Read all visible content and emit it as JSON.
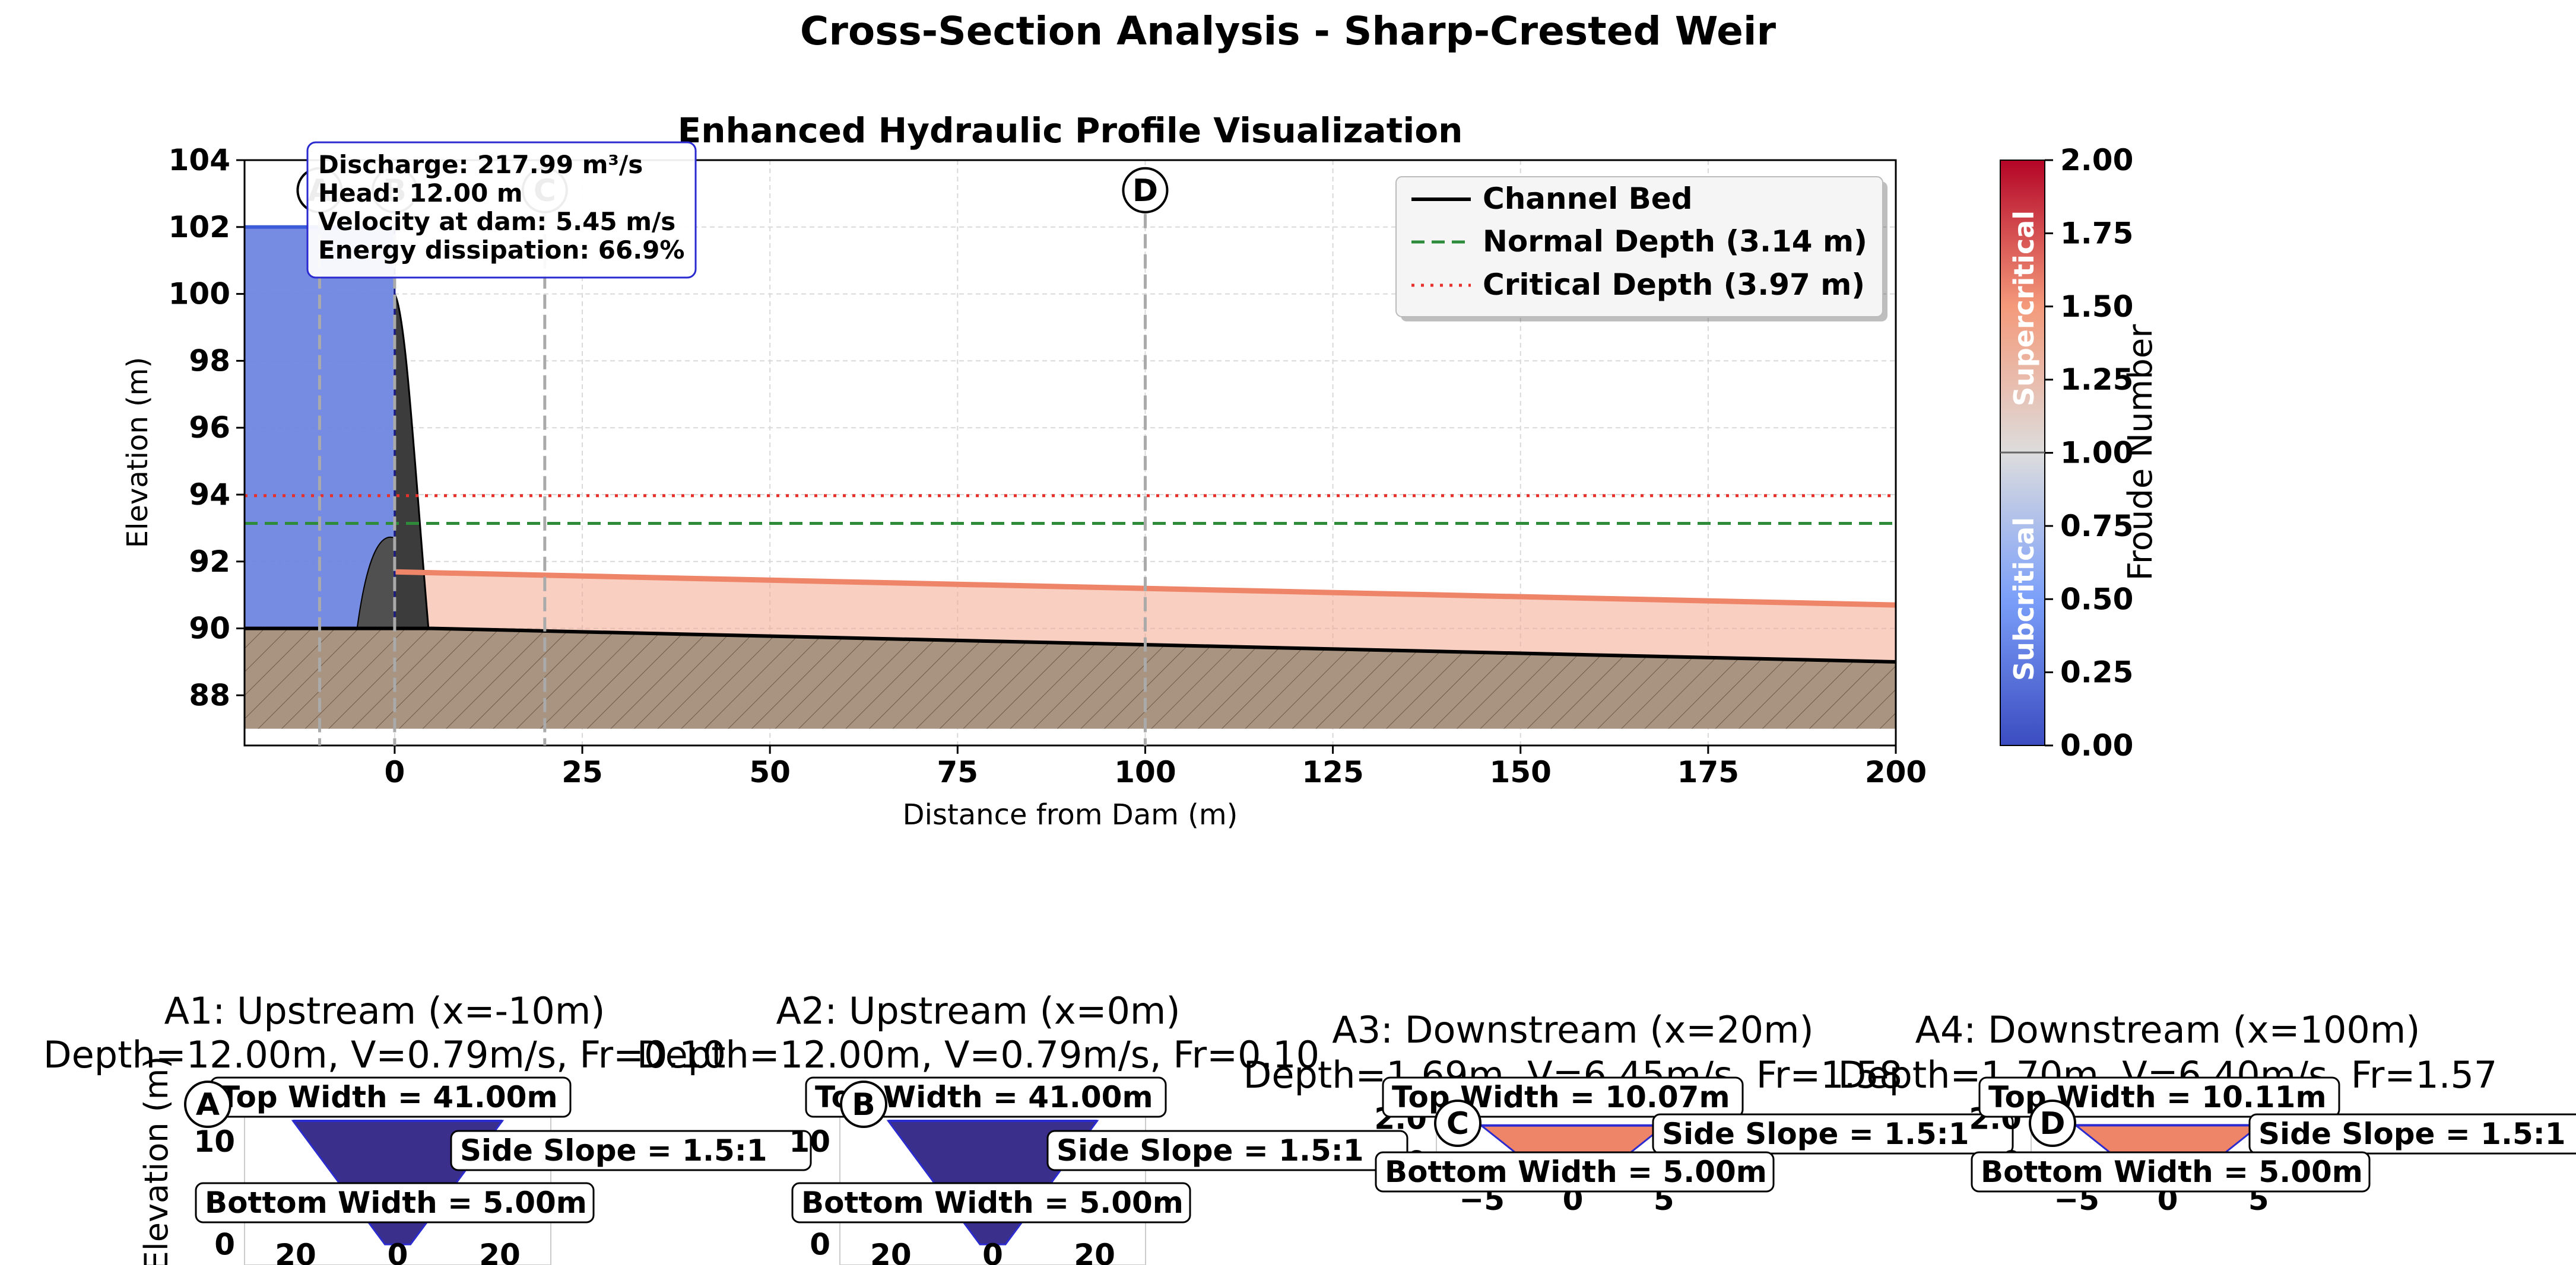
{
  "figure_title": "Cross-Section Analysis - Sharp-Crested Weir",
  "chart_data": [
    {
      "type": "area",
      "title": "Enhanced Hydraulic Profile Visualization",
      "xlabel": "Distance from Dam (m)",
      "ylabel": "Elevation (m)",
      "xlim": [
        -20,
        200
      ],
      "ylim": [
        86.5,
        104
      ],
      "xticks": [
        0,
        25,
        50,
        75,
        100,
        125,
        150,
        175,
        200
      ],
      "yticks": [
        88,
        90,
        92,
        94,
        96,
        98,
        100,
        102,
        104
      ],
      "grid": true,
      "legend_position": "top-right",
      "series": [
        {
          "name": "Channel Bed",
          "x": [
            -20,
            -5,
            0,
            5,
            200
          ],
          "y": [
            90.0,
            90.0,
            90.0,
            90.0,
            89.0
          ]
        },
        {
          "name": "Normal Depth (3.14 m)",
          "y_constant": 93.14
        },
        {
          "name": "Critical Depth (3.97 m)",
          "y_constant": 93.97
        }
      ],
      "upstream_water": {
        "x": [
          -20,
          0
        ],
        "y": [
          102.0,
          102.0
        ]
      },
      "downstream_surface": {
        "x": [
          0,
          200
        ],
        "y": [
          91.69,
          90.7
        ]
      },
      "dam_crest_elevation": 100.0,
      "sections": [
        {
          "label": "A",
          "x": -10
        },
        {
          "label": "B",
          "x": 0
        },
        {
          "label": "C",
          "x": 20
        },
        {
          "label": "D",
          "x": 100
        }
      ],
      "info_box": [
        "Discharge: 217.99 m³/s",
        "Head: 12.00 m",
        "Velocity at dam: 5.45 m/s",
        "Energy dissipation: 66.9%"
      ],
      "colorbar": {
        "label": "Froude Number",
        "range": [
          0,
          2
        ],
        "ticks": [
          "0.00",
          "0.25",
          "0.50",
          "0.75",
          "1.00",
          "1.25",
          "1.50",
          "1.75",
          "2.00"
        ],
        "subcritical_label": "Subcritical",
        "supercritical_label": "Supercritical"
      }
    },
    {
      "type": "area",
      "section": "A",
      "title": "A1: Upstream (x=-10m)",
      "subtitle": "Depth=12.00m, V=0.79m/s, Fr=0.10",
      "ylabel": "Elevation (m)",
      "xlim": [
        -30,
        30
      ],
      "ylim": [
        -2,
        15
      ],
      "xticks": [
        -20,
        0,
        20
      ],
      "xtick_labels": [
        "20",
        "0",
        "20"
      ],
      "yticks": [
        0,
        10
      ],
      "depth": 12.0,
      "bottom_width": 5.0,
      "side_slope": 1.5,
      "froude": 0.1,
      "labels": [
        "Top Width = 41.00m",
        "Side Slope = 1.5:1",
        "Bottom Width = 5.00m"
      ]
    },
    {
      "type": "area",
      "section": "B",
      "title": "A2: Upstream (x=0m)",
      "subtitle": "Depth=12.00m, V=0.79m/s, Fr=0.10",
      "xlim": [
        -30,
        30
      ],
      "ylim": [
        -2,
        15
      ],
      "xticks": [
        -20,
        0,
        20
      ],
      "xtick_labels": [
        "20",
        "0",
        "20"
      ],
      "yticks": [
        0,
        10
      ],
      "depth": 12.0,
      "bottom_width": 5.0,
      "side_slope": 1.5,
      "froude": 0.1,
      "labels": [
        "Top Width = 41.00m",
        "Side Slope = 1.5:1",
        "Bottom Width = 5.00m"
      ]
    },
    {
      "type": "area",
      "section": "C",
      "title": "A3: Downstream (x=20m)",
      "subtitle": "Depth=1.69m, V=6.45m/s, Fr=1.58",
      "xlim": [
        -7.5,
        7.5
      ],
      "ylim": [
        -0.5,
        2.5
      ],
      "xticks": [
        -5,
        0,
        5
      ],
      "xtick_labels": [
        "−5",
        "0",
        "5"
      ],
      "yticks": [
        0,
        2
      ],
      "ytick_labels": [
        "0",
        "2.0"
      ],
      "depth": 1.69,
      "bottom_width": 5.0,
      "side_slope": 1.5,
      "froude": 1.58,
      "labels": [
        "Top Width = 10.07m",
        "Side Slope = 1.5:1",
        "Bottom Width = 5.00m"
      ]
    },
    {
      "type": "area",
      "section": "D",
      "title": "A4: Downstream (x=100m)",
      "subtitle": "Depth=1.70m, V=6.40m/s, Fr=1.57",
      "xlim": [
        -7.5,
        7.5
      ],
      "ylim": [
        -0.5,
        2.5
      ],
      "xticks": [
        -5,
        0,
        5
      ],
      "xtick_labels": [
        "−5",
        "0",
        "5"
      ],
      "yticks": [
        0,
        2
      ],
      "ytick_labels": [
        "0",
        "2.0"
      ],
      "depth": 1.7,
      "bottom_width": 5.0,
      "side_slope": 1.5,
      "froude": 1.57,
      "labels": [
        "Top Width = 10.11m",
        "Side Slope = 1.5:1",
        "Bottom Width = 5.00m"
      ]
    }
  ]
}
